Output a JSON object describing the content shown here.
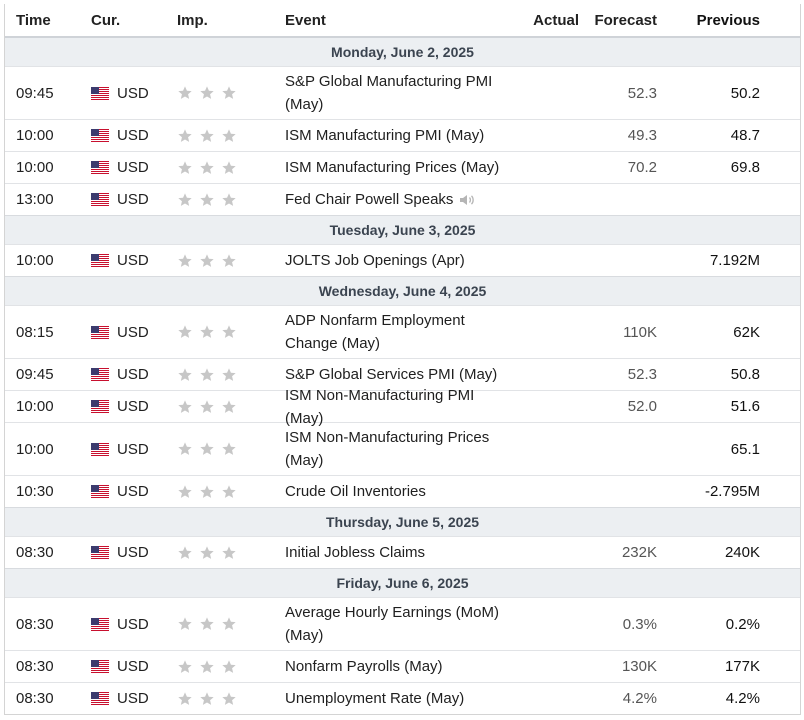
{
  "header": {
    "time": "Time",
    "currency": "Cur.",
    "importance": "Imp.",
    "event": "Event",
    "actual": "Actual",
    "forecast": "Forecast",
    "previous": "Previous"
  },
  "colors": {
    "star": "#c7c7c7",
    "day_bg": "#eceff2"
  },
  "days": [
    {
      "label": "Monday, June 2, 2025",
      "events": [
        {
          "time": "09:45",
          "currency": "USD",
          "event": "S&P Global Manufacturing PMI (May)",
          "actual": "",
          "forecast": "52.3",
          "previous": "50.2",
          "stars": 3,
          "speech": false
        },
        {
          "time": "10:00",
          "currency": "USD",
          "event": "ISM Manufacturing PMI (May)",
          "actual": "",
          "forecast": "49.3",
          "previous": "48.7",
          "stars": 3,
          "speech": false
        },
        {
          "time": "10:00",
          "currency": "USD",
          "event": "ISM Manufacturing Prices (May)",
          "actual": "",
          "forecast": "70.2",
          "previous": "69.8",
          "stars": 3,
          "speech": false
        },
        {
          "time": "13:00",
          "currency": "USD",
          "event": "Fed Chair Powell Speaks",
          "actual": "",
          "forecast": "",
          "previous": "",
          "stars": 3,
          "speech": true
        }
      ]
    },
    {
      "label": "Tuesday, June 3, 2025",
      "events": [
        {
          "time": "10:00",
          "currency": "USD",
          "event": "JOLTS Job Openings (Apr)",
          "actual": "",
          "forecast": "",
          "previous": "7.192M",
          "stars": 3,
          "speech": false
        }
      ]
    },
    {
      "label": "Wednesday, June 4, 2025",
      "events": [
        {
          "time": "08:15",
          "currency": "USD",
          "event": "ADP Nonfarm Employment Change (May)",
          "actual": "",
          "forecast": "110K",
          "previous": "62K",
          "stars": 3,
          "speech": false
        },
        {
          "time": "09:45",
          "currency": "USD",
          "event": "S&P Global Services PMI (May)",
          "actual": "",
          "forecast": "52.3",
          "previous": "50.8",
          "stars": 3,
          "speech": false
        },
        {
          "time": "10:00",
          "currency": "USD",
          "event": "ISM Non-Manufacturing PMI (May)",
          "actual": "",
          "forecast": "52.0",
          "previous": "51.6",
          "stars": 3,
          "speech": false
        },
        {
          "time": "10:00",
          "currency": "USD",
          "event": "ISM Non-Manufacturing Prices (May)",
          "actual": "",
          "forecast": "",
          "previous": "65.1",
          "stars": 3,
          "speech": false
        },
        {
          "time": "10:30",
          "currency": "USD",
          "event": "Crude Oil Inventories",
          "actual": "",
          "forecast": "",
          "previous": "-2.795M",
          "stars": 3,
          "speech": false
        }
      ]
    },
    {
      "label": "Thursday, June 5, 2025",
      "events": [
        {
          "time": "08:30",
          "currency": "USD",
          "event": "Initial Jobless Claims",
          "actual": "",
          "forecast": "232K",
          "previous": "240K",
          "stars": 3,
          "speech": false
        }
      ]
    },
    {
      "label": "Friday, June 6, 2025",
      "events": [
        {
          "time": "08:30",
          "currency": "USD",
          "event": "Average Hourly Earnings (MoM) (May)",
          "actual": "",
          "forecast": "0.3%",
          "previous": "0.2%",
          "stars": 3,
          "speech": false
        },
        {
          "time": "08:30",
          "currency": "USD",
          "event": "Nonfarm Payrolls (May)",
          "actual": "",
          "forecast": "130K",
          "previous": "177K",
          "stars": 3,
          "speech": false
        },
        {
          "time": "08:30",
          "currency": "USD",
          "event": "Unemployment Rate (May)",
          "actual": "",
          "forecast": "4.2%",
          "previous": "4.2%",
          "stars": 3,
          "speech": false
        }
      ]
    }
  ]
}
